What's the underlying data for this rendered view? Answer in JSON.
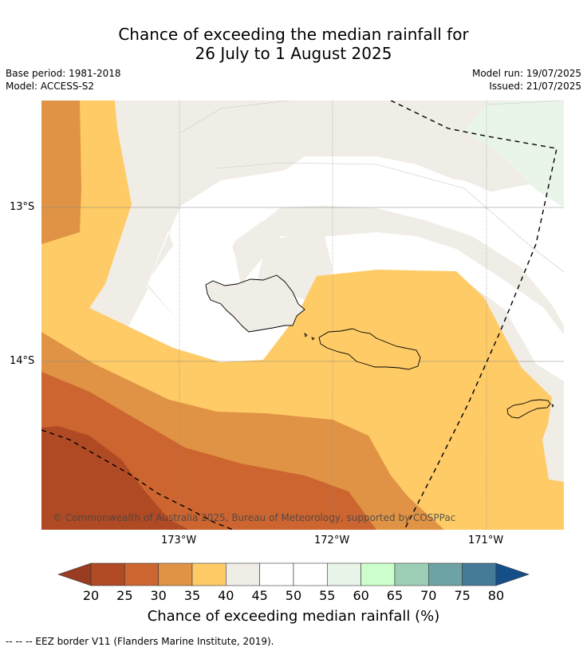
{
  "title": {
    "line1": "Chance of exceeding the median rainfall for",
    "line2": "26 July to 1 August 2025"
  },
  "meta": {
    "base_period": "Base period: 1981-2018",
    "model": "Model: ACCESS-S2",
    "model_run": "Model run: 19/07/2025",
    "issued": "Issued: 21/07/2025"
  },
  "map": {
    "longitudes": [
      "173°W",
      "172°W",
      "171°W"
    ],
    "latitudes": [
      "13°S",
      "14°S"
    ],
    "copyright": "© Commonwealth of Australia 2025, Bureau of Meteorology, supported by COSPPac",
    "islands": [
      "Savai'i",
      "Upolu",
      "Tutuila"
    ]
  },
  "colorbar": {
    "ticks": [
      "20",
      "25",
      "30",
      "35",
      "40",
      "45",
      "50",
      "55",
      "60",
      "65",
      "70",
      "75",
      "80"
    ],
    "colors": [
      "#b04a24",
      "#cc6530",
      "#e09344",
      "#fecb66",
      "#f0ece6",
      "#ffffff",
      "#ffffff",
      "#eaf5ea",
      "#ccffcc",
      "#9dcfb6",
      "#6ea3a6",
      "#457b99"
    ],
    "under_color": "#983c22",
    "over_color": "#154f8a",
    "title": "Chance of exceeding median rainfall (%)"
  },
  "footer": {
    "eez_note": "--  --  -- EEZ border V11 (Flanders Marine Institute, 2019)."
  }
}
